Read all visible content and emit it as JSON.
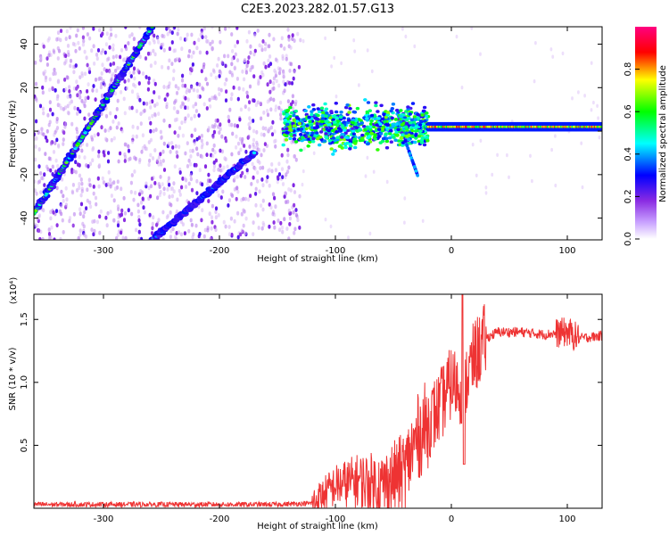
{
  "title": "C2E3.2023.282.01.57.G13",
  "chart_data": [
    {
      "type": "heatmap",
      "xlabel": "Height of straight line (km)",
      "ylabel": "Frequency (Hz)",
      "xlim": [
        -360,
        130
      ],
      "ylim": [
        -50,
        48
      ],
      "xticks": [
        -300,
        -200,
        -100,
        0,
        100
      ],
      "yticks": [
        -40,
        -20,
        0,
        20,
        40
      ],
      "grid": false,
      "colorbar": {
        "label": "Normalized spectral amplitude",
        "range": [
          0,
          1
        ],
        "ticks": [
          "0.0",
          "0.2",
          "0.4",
          "0.6",
          "0.8"
        ],
        "colormap": [
          "#ffffff",
          "#8a2be2",
          "#0000ff",
          "#00ffff",
          "#00ff00",
          "#ffff00",
          "#ff0000",
          "#ff0080"
        ]
      },
      "features": [
        {
          "kind": "diagonal-line",
          "from": [
            -360,
            -38
          ],
          "to": [
            -258,
            48
          ],
          "amplitude": 0.55
        },
        {
          "kind": "diagonal-line",
          "from": [
            -258,
            -50
          ],
          "to": [
            -170,
            -10
          ],
          "amplitude": 0.35
        },
        {
          "kind": "noise-band",
          "x_range": [
            -145,
            -20
          ],
          "y_center": 2,
          "y_spread": 9,
          "amplitude": 0.45
        },
        {
          "kind": "steady-line",
          "x_range": [
            -20,
            130
          ],
          "y": 2,
          "amplitude": 0.85
        }
      ]
    },
    {
      "type": "line",
      "xlabel": "Height of straight line (km)",
      "ylabel": "SNR (10 * v/v)",
      "yunit_label": "(x10⁴)",
      "xlim": [
        -360,
        130
      ],
      "ylim": [
        0,
        1.7
      ],
      "xticks": [
        -300,
        -200,
        -100,
        0,
        100
      ],
      "yticks": [
        0.5,
        1.0,
        1.5
      ],
      "color": "#ee3333",
      "series": [
        {
          "x": [
            -360,
            -300,
            -250,
            -200,
            -150,
            -120,
            -100,
            -80,
            -60,
            -40,
            -30,
            -20,
            -10,
            0,
            10,
            20,
            30,
            40,
            60,
            80,
            100,
            110,
            130
          ],
          "y": [
            0.03,
            0.03,
            0.03,
            0.03,
            0.03,
            0.04,
            0.18,
            0.22,
            0.18,
            0.3,
            0.55,
            0.68,
            0.8,
            1.0,
            0.95,
            1.2,
            1.35,
            1.4,
            1.4,
            1.38,
            1.4,
            1.35,
            1.37
          ]
        }
      ]
    }
  ]
}
